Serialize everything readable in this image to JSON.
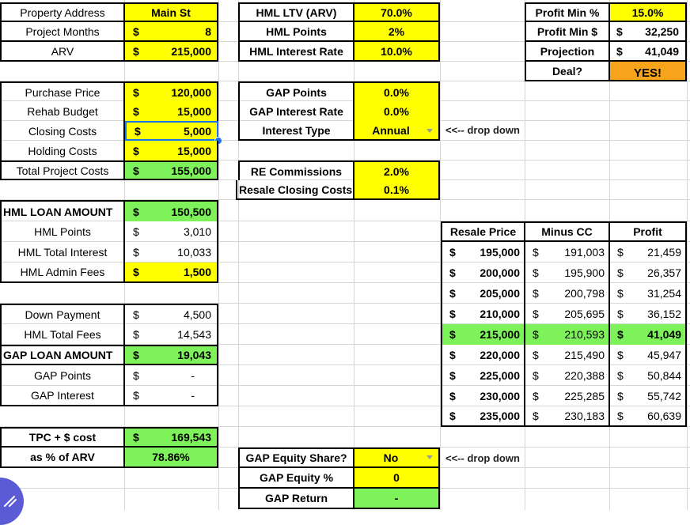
{
  "inputs": {
    "property_address_label": "Property Address",
    "property_address_value": "Main St",
    "project_months_label": "Project Months",
    "project_months_sym": "$",
    "project_months_value": "8",
    "arv_label": "ARV",
    "arv_sym": "$",
    "arv_value": "215,000"
  },
  "costs": {
    "purchase_label": "Purchase Price",
    "purchase_value": "120,000",
    "rehab_label": "Rehab Budget",
    "rehab_value": "15,000",
    "closing_label": "Closing Costs",
    "closing_value": "5,000",
    "holding_label": "Holding Costs",
    "holding_value": "15,000",
    "total_label": "Total Project Costs",
    "total_value": "155,000",
    "sym": "$"
  },
  "hml": {
    "ltv_label": "HML LTV (ARV)",
    "ltv_value": "70.0%",
    "points_label": "HML Points",
    "points_value": "2%",
    "rate_label": "HML Interest Rate",
    "rate_value": "10.0%",
    "loan_label": "HML LOAN AMOUNT",
    "loan_value": "150,500",
    "points_amt_label": "HML Points",
    "points_amt_value": "3,010",
    "interest_label": "HML Total Interest",
    "interest_value": "10,033",
    "admin_label": "HML Admin Fees",
    "admin_value": "1,500"
  },
  "gap": {
    "points_label": "GAP Points",
    "points_value": "0.0%",
    "rate_label": "GAP Interest Rate",
    "rate_value": "0.0%",
    "type_label": "Interest Type",
    "type_value": "Annual",
    "type_note": "<<-- drop down",
    "re_comm_label": "RE Commissions",
    "re_comm_value": "2.0%",
    "resale_cc_label": "Resale Closing Costs",
    "resale_cc_value": "0.1%",
    "down_label": "Down Payment",
    "down_value": "4,500",
    "fees_label": "HML Total Fees",
    "fees_value": "14,543",
    "loan_label": "GAP LOAN AMOUNT",
    "loan_value": "19,043",
    "pts_label": "GAP Points",
    "pts_value": "-",
    "int_label": "GAP Interest",
    "int_value": "-",
    "equity_share_label": "GAP Equity Share?",
    "equity_share_value": "No",
    "equity_note": "<<-- drop down",
    "equity_pct_label": "GAP Equity %",
    "equity_pct_value": "0",
    "return_label": "GAP Return",
    "return_value": "-"
  },
  "tpc": {
    "cost_label": "TPC + $ cost",
    "cost_value": "169,543",
    "pct_label": "as % of ARV",
    "pct_value": "78.86%"
  },
  "profit": {
    "min_pct_label": "Profit Min %",
    "min_pct_value": "15.0%",
    "min_usd_label": "Profit Min $",
    "min_usd_value": "32,250",
    "projection_label": "Projection",
    "projection_value": "41,049",
    "deal_label": "Deal?",
    "deal_value": "YES!"
  },
  "resale": {
    "headers": [
      "Resale Price",
      "Minus CC",
      "Profit"
    ],
    "rows": [
      [
        "195,000",
        "191,003",
        "21,459"
      ],
      [
        "200,000",
        "195,900",
        "26,357"
      ],
      [
        "205,000",
        "200,798",
        "31,254"
      ],
      [
        "210,000",
        "205,695",
        "36,152"
      ],
      [
        "215,000",
        "210,593",
        "41,049"
      ],
      [
        "220,000",
        "215,490",
        "45,947"
      ],
      [
        "225,000",
        "220,388",
        "50,844"
      ],
      [
        "230,000",
        "225,285",
        "55,742"
      ],
      [
        "235,000",
        "230,183",
        "60,639"
      ]
    ],
    "highlight_row": 4
  },
  "colors": {
    "input_yellow": "#ffff00",
    "result_green": "#7df25a",
    "deal_orange": "#f7a31c"
  }
}
